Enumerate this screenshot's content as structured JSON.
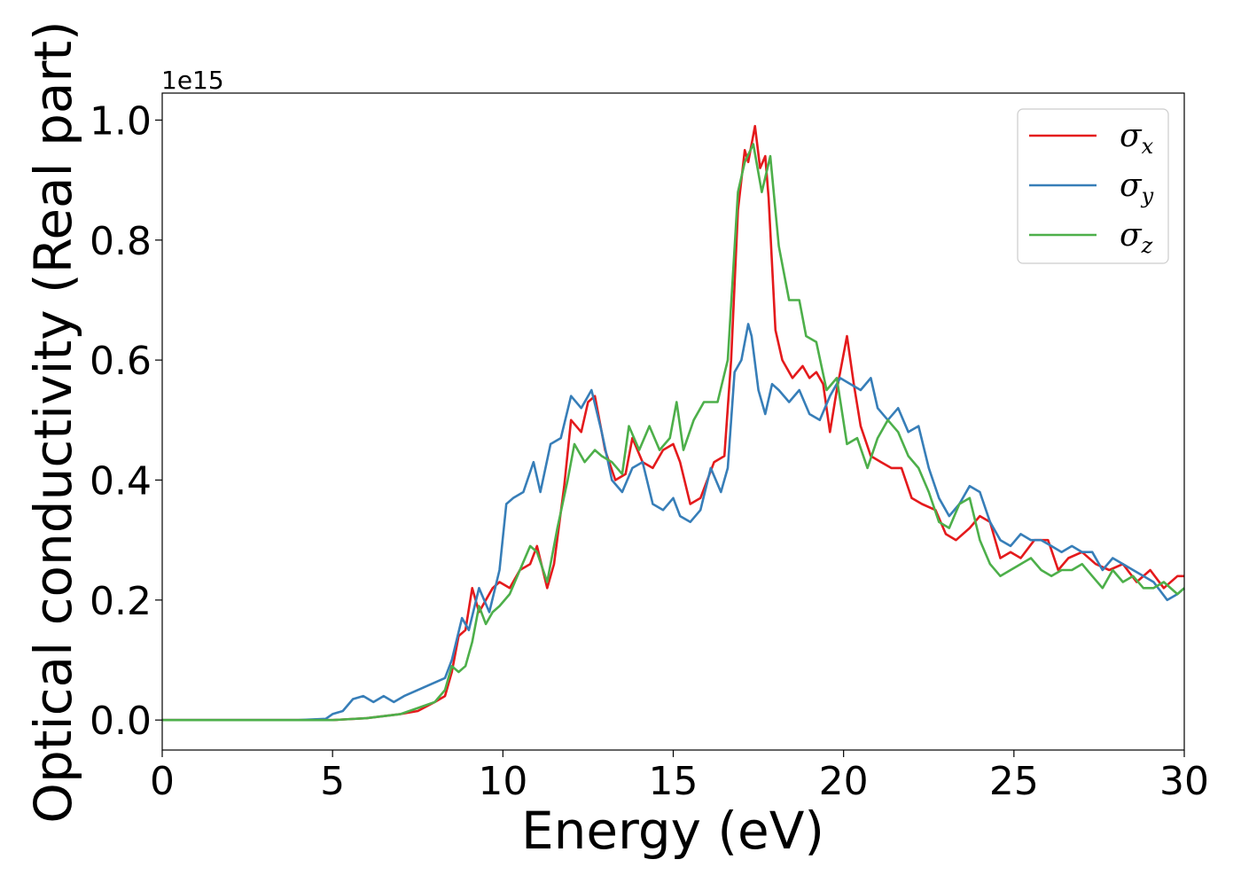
{
  "chart_data": {
    "type": "line",
    "xlabel": "Energy (eV)",
    "ylabel": "Optical conductivity (Real part)",
    "y_offset_label": "1e15",
    "xlim": [
      0,
      30
    ],
    "ylim": [
      -0.05,
      1.045
    ],
    "x_ticks": [
      0,
      5,
      10,
      15,
      20,
      25,
      30
    ],
    "x_tick_labels": [
      "0",
      "5",
      "10",
      "15",
      "20",
      "25",
      "30"
    ],
    "y_ticks": [
      0.0,
      0.2,
      0.4,
      0.6,
      0.8,
      1.0
    ],
    "y_tick_labels": [
      "0.0",
      "0.2",
      "0.4",
      "0.6",
      "0.8",
      "1.0"
    ],
    "grid": false,
    "legend": {
      "position": "top-right"
    },
    "series": [
      {
        "name": "σx",
        "symbol": "σ",
        "subscript": "x",
        "color": "#e41a1c",
        "x": [
          0,
          4,
          5,
          6,
          7,
          7.5,
          8,
          8.3,
          8.5,
          8.7,
          8.9,
          9.1,
          9.3,
          9.5,
          9.7,
          9.9,
          10.2,
          10.5,
          10.8,
          11,
          11.3,
          11.5,
          11.8,
          12,
          12.3,
          12.5,
          12.7,
          13,
          13.3,
          13.6,
          13.8,
          14.1,
          14.4,
          14.7,
          15,
          15.2,
          15.5,
          15.8,
          16.2,
          16.5,
          16.7,
          16.9,
          17.1,
          17.2,
          17.4,
          17.55,
          17.7,
          17.8,
          18,
          18.2,
          18.5,
          18.8,
          19,
          19.2,
          19.4,
          19.6,
          19.8,
          20.1,
          20.3,
          20.5,
          20.8,
          21.1,
          21.4,
          21.7,
          22,
          22.3,
          22.7,
          23,
          23.3,
          23.7,
          24,
          24.3,
          24.6,
          24.9,
          25.2,
          25.6,
          26,
          26.3,
          26.6,
          27,
          27.4,
          27.8,
          28.2,
          28.6,
          29,
          29.4,
          29.8,
          30
        ],
        "y": [
          0,
          0,
          0,
          0.003,
          0.01,
          0.015,
          0.03,
          0.04,
          0.08,
          0.14,
          0.15,
          0.22,
          0.18,
          0.2,
          0.22,
          0.23,
          0.22,
          0.25,
          0.26,
          0.29,
          0.22,
          0.26,
          0.39,
          0.5,
          0.48,
          0.53,
          0.54,
          0.45,
          0.4,
          0.41,
          0.47,
          0.43,
          0.42,
          0.45,
          0.46,
          0.43,
          0.36,
          0.37,
          0.43,
          0.44,
          0.6,
          0.85,
          0.95,
          0.93,
          0.99,
          0.92,
          0.94,
          0.87,
          0.65,
          0.6,
          0.57,
          0.59,
          0.57,
          0.58,
          0.56,
          0.48,
          0.55,
          0.64,
          0.56,
          0.49,
          0.44,
          0.43,
          0.42,
          0.42,
          0.37,
          0.36,
          0.35,
          0.31,
          0.3,
          0.32,
          0.34,
          0.33,
          0.27,
          0.28,
          0.27,
          0.3,
          0.3,
          0.25,
          0.27,
          0.28,
          0.26,
          0.25,
          0.26,
          0.23,
          0.25,
          0.22,
          0.24,
          0.24
        ]
      },
      {
        "name": "σy",
        "symbol": "σ",
        "subscript": "y",
        "color": "#377eb8",
        "x": [
          0,
          4,
          4.8,
          5,
          5.3,
          5.6,
          5.9,
          6.2,
          6.5,
          6.8,
          7.1,
          7.5,
          7.9,
          8.3,
          8.5,
          8.8,
          9,
          9.3,
          9.6,
          9.9,
          10.1,
          10.3,
          10.6,
          10.9,
          11.1,
          11.4,
          11.7,
          12,
          12.3,
          12.6,
          12.9,
          13.2,
          13.5,
          13.8,
          14.1,
          14.4,
          14.7,
          15,
          15.2,
          15.5,
          15.8,
          16.1,
          16.4,
          16.6,
          16.8,
          17,
          17.2,
          17.3,
          17.5,
          17.7,
          17.9,
          18.1,
          18.4,
          18.7,
          19,
          19.3,
          19.6,
          19.9,
          20.2,
          20.5,
          20.8,
          21,
          21.3,
          21.6,
          21.9,
          22.2,
          22.5,
          22.8,
          23.1,
          23.4,
          23.7,
          24,
          24.3,
          24.6,
          24.9,
          25.2,
          25.5,
          25.8,
          26.1,
          26.4,
          26.7,
          27,
          27.3,
          27.6,
          27.9,
          28.2,
          28.5,
          28.8,
          29.1,
          29.5,
          29.8,
          30
        ],
        "y": [
          0,
          0,
          0.002,
          0.01,
          0.015,
          0.035,
          0.04,
          0.03,
          0.04,
          0.03,
          0.04,
          0.05,
          0.06,
          0.07,
          0.1,
          0.17,
          0.15,
          0.22,
          0.18,
          0.25,
          0.36,
          0.37,
          0.38,
          0.43,
          0.38,
          0.46,
          0.47,
          0.54,
          0.52,
          0.55,
          0.48,
          0.4,
          0.38,
          0.42,
          0.43,
          0.36,
          0.35,
          0.37,
          0.34,
          0.33,
          0.35,
          0.42,
          0.38,
          0.42,
          0.58,
          0.6,
          0.66,
          0.64,
          0.55,
          0.51,
          0.56,
          0.55,
          0.53,
          0.55,
          0.51,
          0.5,
          0.54,
          0.57,
          0.56,
          0.55,
          0.57,
          0.52,
          0.5,
          0.52,
          0.48,
          0.49,
          0.42,
          0.37,
          0.34,
          0.36,
          0.39,
          0.38,
          0.33,
          0.3,
          0.29,
          0.31,
          0.3,
          0.3,
          0.29,
          0.28,
          0.29,
          0.28,
          0.28,
          0.25,
          0.27,
          0.26,
          0.25,
          0.24,
          0.23,
          0.2,
          0.21,
          0.22
        ]
      },
      {
        "name": "σz",
        "symbol": "σ",
        "subscript": "z",
        "color": "#4daf4a",
        "x": [
          0,
          4,
          5,
          6,
          7,
          7.5,
          8,
          8.3,
          8.5,
          8.7,
          8.9,
          9.1,
          9.3,
          9.5,
          9.7,
          9.9,
          10.2,
          10.5,
          10.8,
          11,
          11.3,
          11.6,
          11.9,
          12.1,
          12.4,
          12.7,
          12.9,
          13.2,
          13.5,
          13.7,
          14,
          14.3,
          14.6,
          14.9,
          15.1,
          15.3,
          15.6,
          15.9,
          16.3,
          16.6,
          16.9,
          17.1,
          17.35,
          17.6,
          17.85,
          18.1,
          18.4,
          18.7,
          18.9,
          19.2,
          19.5,
          19.8,
          20.1,
          20.4,
          20.7,
          21,
          21.3,
          21.6,
          21.9,
          22.2,
          22.5,
          22.8,
          23.1,
          23.4,
          23.7,
          24,
          24.3,
          24.6,
          24.9,
          25.2,
          25.5,
          25.8,
          26.1,
          26.4,
          26.7,
          27,
          27.3,
          27.6,
          27.9,
          28.2,
          28.5,
          28.8,
          29.1,
          29.4,
          29.8,
          30
        ],
        "y": [
          0,
          0,
          0,
          0.003,
          0.01,
          0.02,
          0.03,
          0.05,
          0.09,
          0.08,
          0.09,
          0.13,
          0.19,
          0.16,
          0.18,
          0.19,
          0.21,
          0.25,
          0.29,
          0.28,
          0.23,
          0.32,
          0.4,
          0.46,
          0.43,
          0.45,
          0.44,
          0.43,
          0.41,
          0.49,
          0.45,
          0.49,
          0.45,
          0.47,
          0.53,
          0.45,
          0.5,
          0.53,
          0.53,
          0.6,
          0.88,
          0.93,
          0.96,
          0.88,
          0.94,
          0.79,
          0.7,
          0.7,
          0.64,
          0.63,
          0.55,
          0.57,
          0.46,
          0.47,
          0.42,
          0.47,
          0.5,
          0.48,
          0.44,
          0.42,
          0.38,
          0.33,
          0.32,
          0.36,
          0.37,
          0.3,
          0.26,
          0.24,
          0.25,
          0.26,
          0.27,
          0.25,
          0.24,
          0.25,
          0.25,
          0.26,
          0.24,
          0.22,
          0.25,
          0.23,
          0.24,
          0.22,
          0.22,
          0.23,
          0.21,
          0.22
        ]
      }
    ]
  }
}
